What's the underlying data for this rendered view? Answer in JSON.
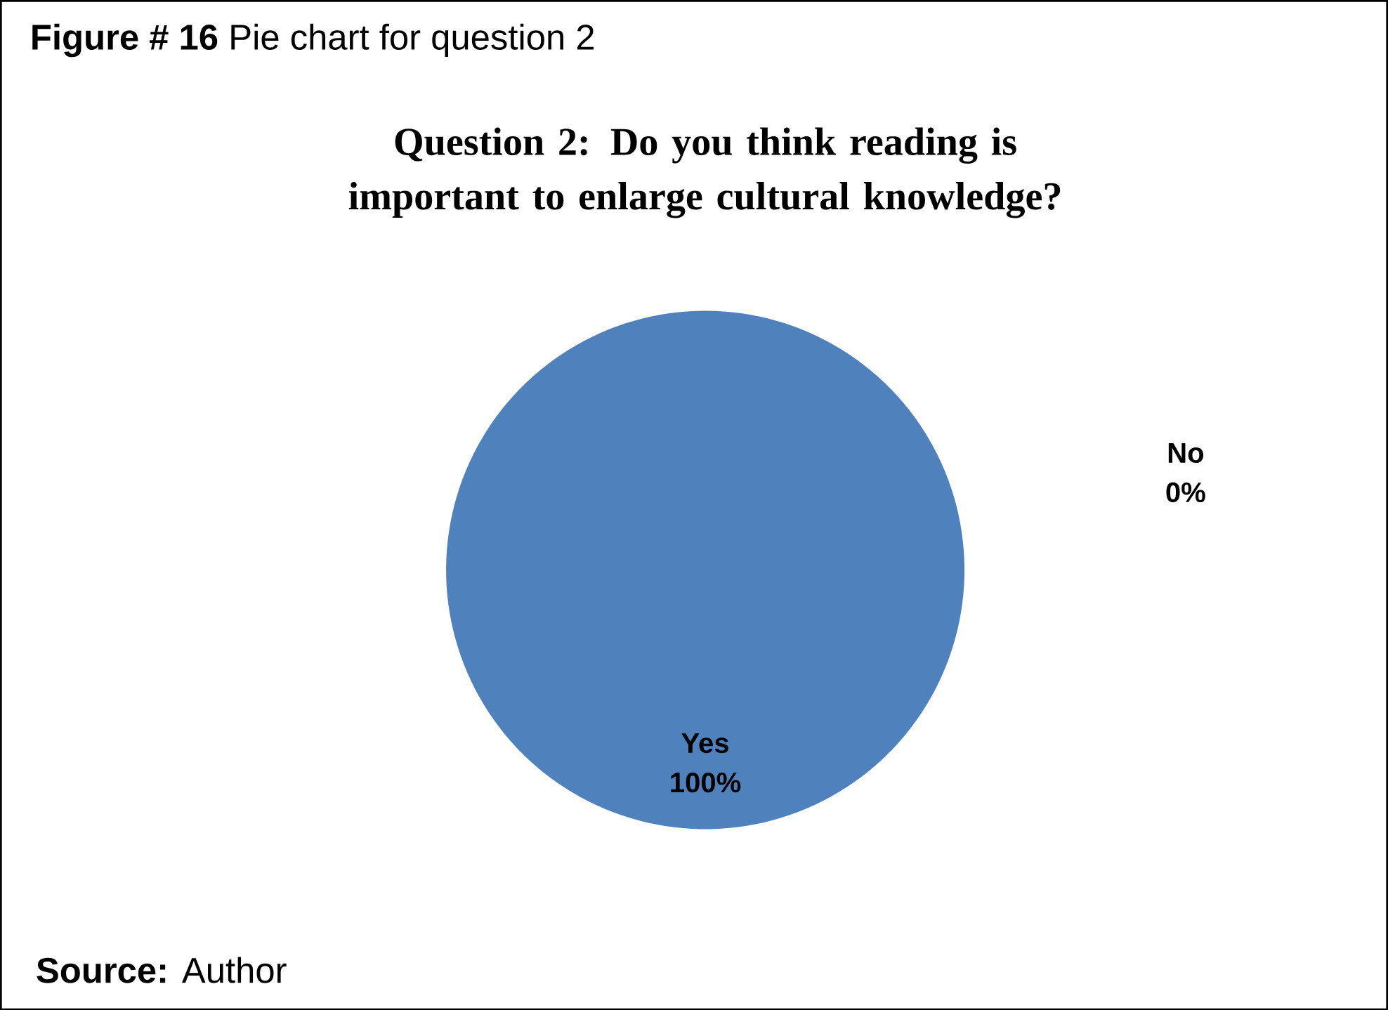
{
  "chart_data": {
    "type": "pie",
    "title": "Question 2: Do you think reading is important to enlarge cultural knowledge?",
    "categories": [
      "Yes",
      "No"
    ],
    "values": [
      100,
      0
    ],
    "colors": [
      "#4f81bd",
      "#c0504d"
    ],
    "value_labels": [
      "100%",
      "0%"
    ],
    "annotations": [
      "**Figure # 16** Pie chart for question 2",
      "**Source:** Author"
    ]
  }
}
